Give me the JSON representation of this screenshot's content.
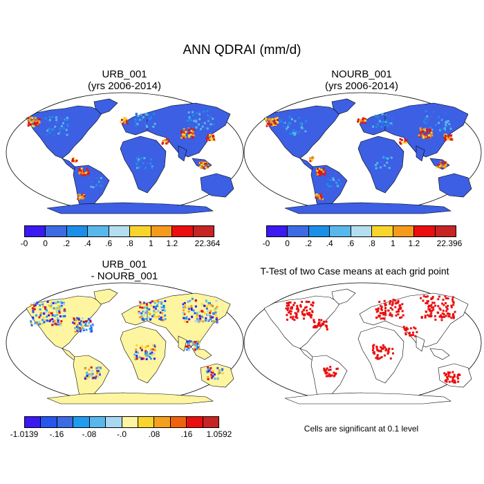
{
  "figure_title": "ANN QDRAI (mm/d)",
  "panels": [
    {
      "title_line1": "URB_001",
      "title_line2": "(yrs 2006-2014)",
      "style": "abs"
    },
    {
      "title_line1": "NOURB_001",
      "title_line2": "(yrs 2006-2014)",
      "style": "abs"
    },
    {
      "title_line1": "URB_001",
      "title_line2": "- NOURB_001",
      "style": "diff"
    },
    {
      "title_line1": "T-Test of two Case means at each grid point",
      "title_line2": "",
      "style": "ttest"
    }
  ],
  "colorbars": [
    {
      "name": "urb-colorbar",
      "colors": [
        "#3a1af0",
        "#3c6be3",
        "#1b8fe8",
        "#58b8ec",
        "#b4def0",
        "#f9d42c",
        "#f59a1c",
        "#ea0e0e",
        "#c72424"
      ],
      "labels": [
        "-0",
        "0",
        ".2",
        ".4",
        ".6",
        ".8",
        "1",
        "1.2",
        "22.364"
      ]
    },
    {
      "name": "nourb-colorbar",
      "colors": [
        "#3a1af0",
        "#3c6be3",
        "#1b8fe8",
        "#58b8ec",
        "#b4def0",
        "#f9d42c",
        "#f59a1c",
        "#ea0e0e",
        "#c72424"
      ],
      "labels": [
        "-0",
        "0",
        ".2",
        ".4",
        ".6",
        ".8",
        "1",
        "1.2",
        "22.396"
      ]
    },
    {
      "name": "diff-colorbar",
      "colors": [
        "#3a1af0",
        "#2656f0",
        "#3c6be3",
        "#1f9cf0",
        "#58b8ec",
        "#a8d8f0",
        "#fdf5a0",
        "#f9d42c",
        "#f5a01c",
        "#f0620e",
        "#ea0e0e",
        "#c72424"
      ],
      "labels": [
        "-1.0139",
        "-.16",
        "-.08",
        "-.0",
        ".08",
        ".16",
        "1.0592"
      ]
    }
  ],
  "significance_note": "Cells are significant at 0.1 level",
  "colors": {
    "land_abs": "#3c5fe3",
    "ocean": "#ffffff",
    "land_diff": "#fdf5a0",
    "significant": "#ea0e0e",
    "coast": "#000000"
  }
}
